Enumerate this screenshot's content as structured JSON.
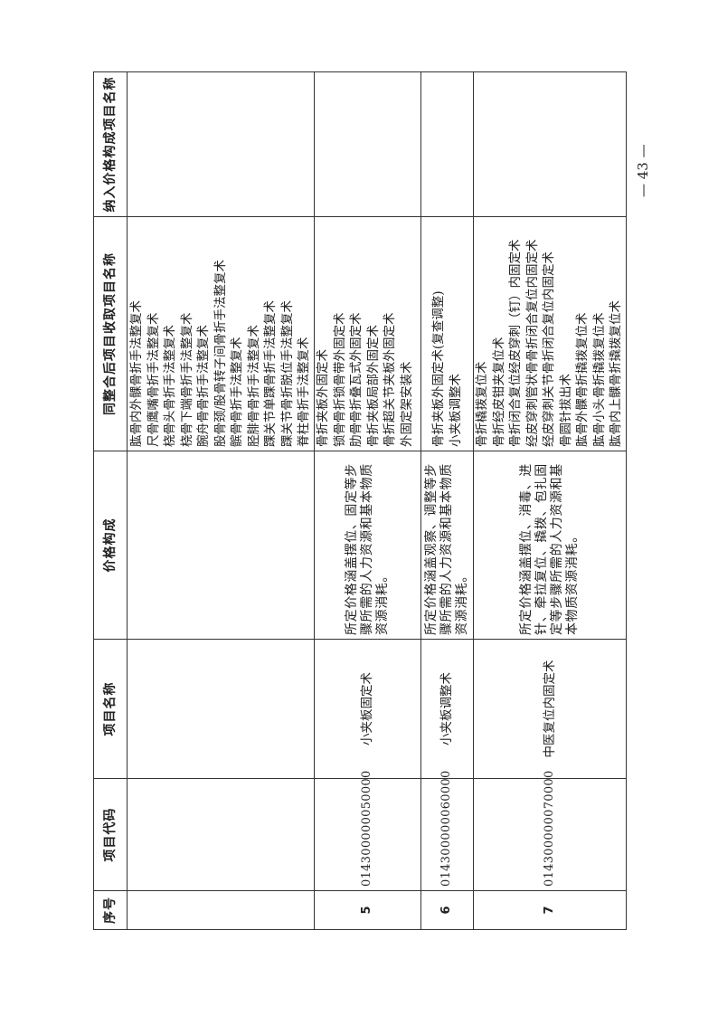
{
  "table": {
    "headers": [
      "序号",
      "项目代码",
      "项目名称",
      "价格构成",
      "同整合后项目收取项目名称",
      "纳入价格构成项目名称"
    ],
    "continuation_items": [
      "肱骨内外髁骨折手法整复术",
      "尺骨鹰嘴骨折手法整复术",
      "桡骨头骨折手法整复术",
      "桡骨下端骨折手法整复术",
      "腕舟骨骨折手法整复术",
      "股骨颈/股骨转子间骨折手法整复术",
      "髌骨骨折手法整复术",
      "胫腓骨骨折手法整复术",
      "踝关节单踝骨折手法整复术",
      "踝关节骨折脱位手法整复术",
      "脊柱骨折手法整复术"
    ],
    "rows": [
      {
        "no": "5",
        "code": "014300000050000",
        "name": "小夹板固定术",
        "price_composition": "所定价格涵盖摆位、固定等步骤所需的人力资源和基本物质资源消耗。",
        "items": [
          "骨折夹板外固定术",
          "锁骨骨折锁骨带外固定术",
          "肋骨骨折叠瓦式外固定术",
          "骨折夹板局部外固定术",
          "骨折超关节夹板外固定术",
          "外固定架安装术"
        ],
        "included": ""
      },
      {
        "no": "6",
        "code": "014300000060000",
        "name": "小夹板调整术",
        "price_composition": "所定价格涵盖观察、调整等步骤所需的人力资源和基本物质资源消耗。",
        "items": [
          "骨折夹板外固定术(复查调整)",
          "小夹板调整术"
        ],
        "included": ""
      },
      {
        "no": "7",
        "code": "014300000070000",
        "name": "中医复位内固定术",
        "price_composition": "所定价格涵盖摆位、消毒、进针、牵拉复位、撬拨、包扎固定等步骤所需的人力资源和基本物质资源消耗。",
        "items": [
          "骨折橇拨复位术",
          "骨折经皮钳夹复位术",
          "骨折闭合复位经皮穿刺（钉）内固定术",
          "经皮穿刺管状骨骨折闭合复位内固定术",
          "经皮穿刺关节骨折闭合复位内固定术",
          "骨圆针拔出术",
          "肱骨外髁骨折撬拨复位术",
          "肱骨小头骨折撬拨复位术",
          "肱骨内上髁骨折撬拨复位术"
        ],
        "included": ""
      }
    ]
  },
  "footer": {
    "page_number": "— 43 —"
  }
}
